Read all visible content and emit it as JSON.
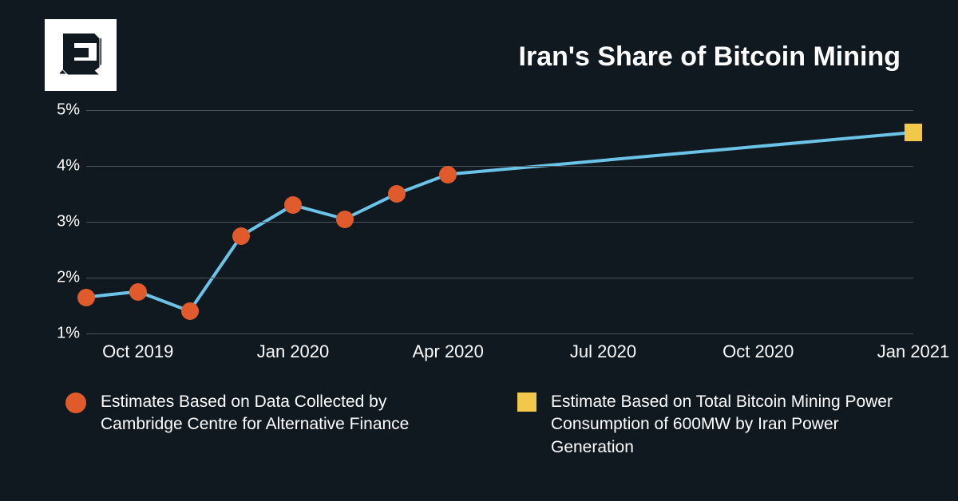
{
  "title": "Iran's Share of Bitcoin Mining",
  "background_color": "#101820",
  "text_color": "#ffffff",
  "chart": {
    "type": "line",
    "line_color": "#6cc3e8",
    "line_width": 4,
    "grid_color": "#4a525a",
    "y_axis": {
      "min": 1,
      "max": 5,
      "ticks": [
        1,
        2,
        3,
        4,
        5
      ],
      "tick_labels": [
        "1%",
        "2%",
        "3%",
        "4%",
        "5%"
      ],
      "label_fontsize": 20
    },
    "x_axis": {
      "domain_months": [
        "2019-09",
        "2021-01"
      ],
      "tick_months": [
        "2019-10",
        "2020-01",
        "2020-04",
        "2020-07",
        "2020-10",
        "2021-01"
      ],
      "tick_labels": [
        "Oct 2019",
        "Jan 2020",
        "Apr 2020",
        "Jul 2020",
        "Oct 2020",
        "Jan 2021"
      ],
      "label_fontsize": 22
    },
    "series_line": {
      "months": [
        "2019-09",
        "2019-10",
        "2019-11",
        "2019-12",
        "2020-01",
        "2020-02",
        "2020-03",
        "2020-04",
        "2021-01"
      ],
      "values": [
        1.65,
        1.75,
        1.4,
        2.75,
        3.3,
        3.05,
        3.5,
        3.85,
        4.6
      ]
    },
    "markers_circle": {
      "months": [
        "2019-09",
        "2019-10",
        "2019-11",
        "2019-12",
        "2020-01",
        "2020-02",
        "2020-03",
        "2020-04"
      ],
      "values": [
        1.65,
        1.75,
        1.4,
        2.75,
        3.3,
        3.05,
        3.5,
        3.85
      ],
      "color": "#e05a2b",
      "size": 22
    },
    "markers_square": {
      "months": [
        "2021-01"
      ],
      "values": [
        4.6
      ],
      "color": "#f2c84b",
      "size": 22
    }
  },
  "legend": {
    "items": [
      {
        "marker": "circle",
        "color": "#e05a2b",
        "text": "Estimates Based on Data Collected by Cambridge Centre for Alternative Finance"
      },
      {
        "marker": "square",
        "color": "#f2c84b",
        "text": "Estimate Based on Total Bitcoin Mining Power Consumption of 600MW by Iran Power Generation"
      }
    ]
  }
}
